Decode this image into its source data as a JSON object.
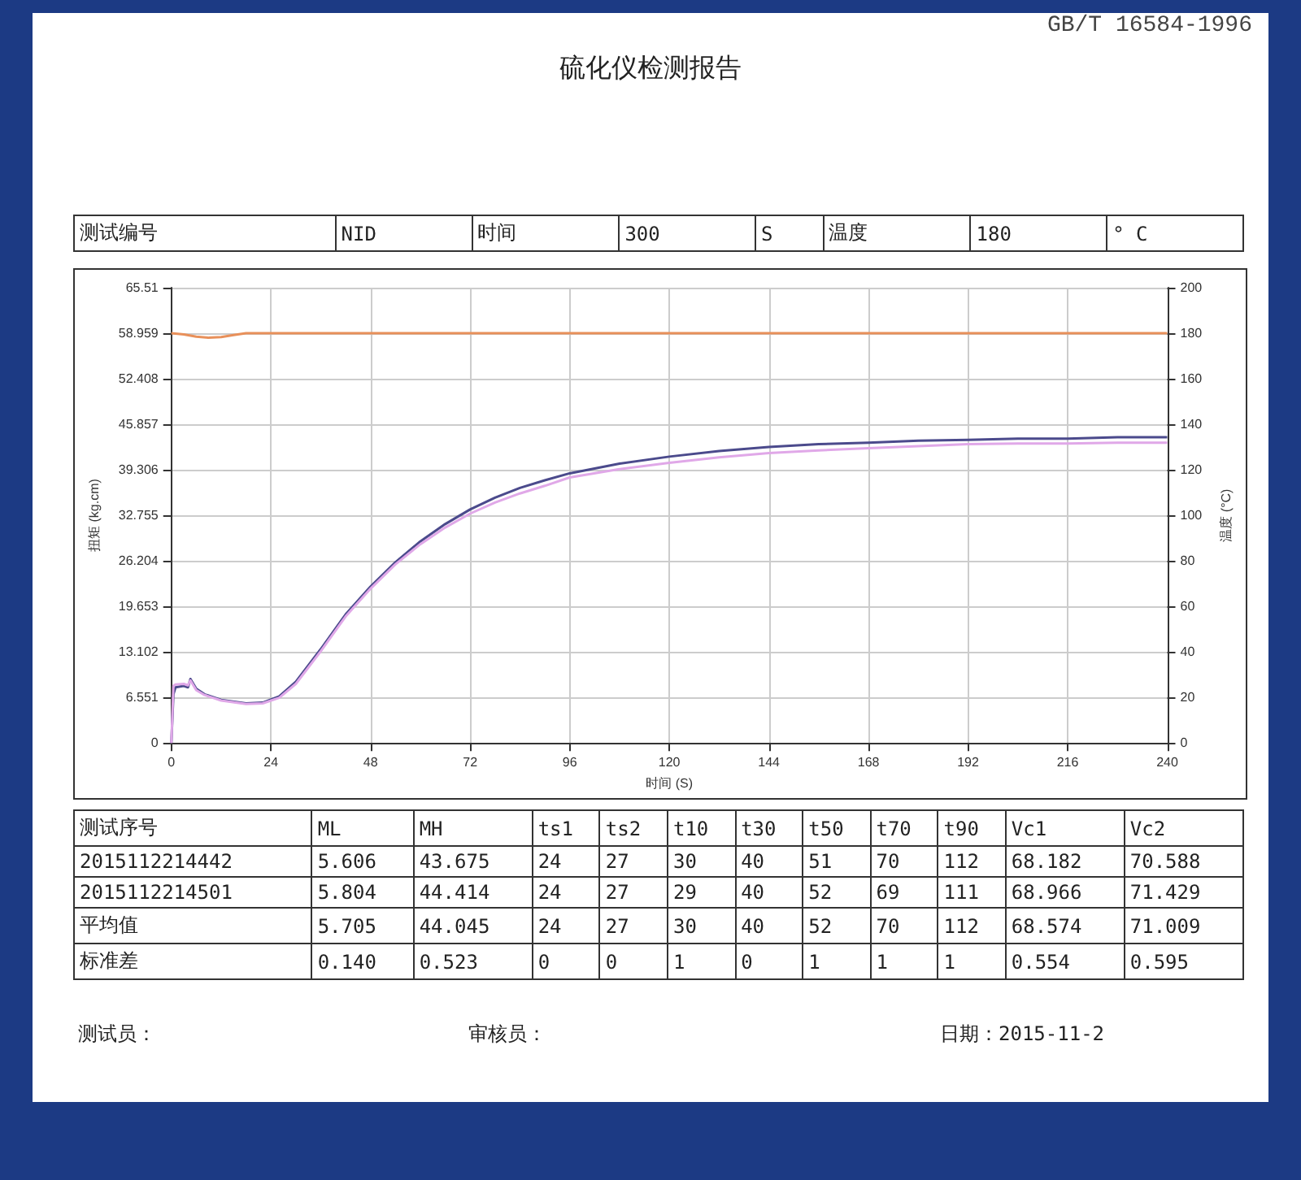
{
  "chart_data": {
    "type": "line",
    "title": "硫化仪检测报告",
    "xlabel": "时间 (S)",
    "ylabel": "扭矩 (kg.cm)",
    "y2label": "温度 (°C)",
    "xlim": [
      0,
      240
    ],
    "xticks": [
      0,
      24,
      48,
      72,
      96,
      120,
      144,
      168,
      192,
      216,
      240
    ],
    "ylim": [
      0,
      65.51
    ],
    "yticks": [
      0,
      6.551,
      13.102,
      19.653,
      26.204,
      32.755,
      39.306,
      45.857,
      52.408,
      58.959,
      65.51
    ],
    "y2lim": [
      0,
      200
    ],
    "y2ticks": [
      0,
      20,
      40,
      60,
      80,
      100,
      120,
      140,
      160,
      180,
      200
    ],
    "grid": true,
    "marker": "none",
    "line_style": "solid",
    "series": [
      {
        "color": "#4b4a8c",
        "x": [
          0,
          0.5,
          1,
          3,
          4,
          4.6,
          6,
          8,
          12,
          18,
          22,
          26,
          30,
          36,
          42,
          48,
          54,
          60,
          66,
          72,
          78,
          84,
          90,
          96,
          108,
          120,
          132,
          144,
          156,
          168,
          180,
          192,
          204,
          216,
          228,
          240
        ],
        "values": [
          0,
          7,
          8,
          8.2,
          8,
          9.2,
          7.8,
          7,
          6.2,
          5.7,
          5.8,
          6.7,
          8.8,
          13.5,
          18.5,
          22.5,
          26,
          29,
          31.5,
          33.6,
          35.3,
          36.7,
          37.8,
          38.8,
          40.2,
          41.2,
          42,
          42.6,
          43,
          43.2,
          43.5,
          43.6,
          43.8,
          43.8,
          44,
          44
        ]
      },
      {
        "color": "#e0a8e8",
        "x": [
          0,
          0.5,
          1,
          3,
          4,
          4.6,
          6,
          8,
          12,
          18,
          22,
          26,
          30,
          36,
          42,
          48,
          54,
          60,
          66,
          72,
          78,
          84,
          90,
          96,
          108,
          120,
          132,
          144,
          156,
          168,
          180,
          192,
          204,
          216,
          228,
          240
        ],
        "values": [
          0,
          8.2,
          8.4,
          8.5,
          8.3,
          9,
          7.6,
          6.9,
          6.1,
          5.6,
          5.7,
          6.5,
          8.5,
          13.2,
          18.2,
          22.2,
          25.7,
          28.6,
          31,
          33,
          34.6,
          35.9,
          37,
          38.2,
          39.4,
          40.3,
          41.1,
          41.7,
          42.1,
          42.4,
          42.7,
          43,
          43.1,
          43.1,
          43.2,
          43.2
        ]
      },
      {
        "color": "#e8905a",
        "axis": "y2",
        "x": [
          0,
          3,
          6,
          9,
          12,
          15,
          18,
          240
        ],
        "values": [
          180,
          179.5,
          178.5,
          178,
          178.3,
          179.2,
          180,
          180
        ]
      }
    ],
    "annotations": [
      "GB/T 16584-1996",
      "测试编号",
      "NID",
      "时间",
      "300",
      "S",
      "温度",
      "180",
      "° C",
      "测试序号",
      "ML",
      "MH",
      "ts1",
      "ts2",
      "t10",
      "t30",
      "t50",
      "t70",
      "t90",
      "Vc1",
      "Vc2",
      "2015112214442",
      "5.606",
      "43.675",
      "24",
      "27",
      "30",
      "40",
      "51",
      "70",
      "112",
      "68.182",
      "70.588",
      "2015112214501",
      "5.804",
      "44.414",
      "24",
      "27",
      "29",
      "40",
      "52",
      "69",
      "111",
      "68.966",
      "71.429",
      "平均值",
      "5.705",
      "44.045",
      "24",
      "27",
      "30",
      "40",
      "52",
      "70",
      "112",
      "68.574",
      "71.009",
      "标准差",
      "0.140",
      "0.523",
      "0",
      "0",
      "1",
      "0",
      "1",
      "1",
      "1",
      "0.554",
      "0.595",
      "测试员：",
      "审核员：",
      "日期：2015-11-2"
    ]
  }
}
